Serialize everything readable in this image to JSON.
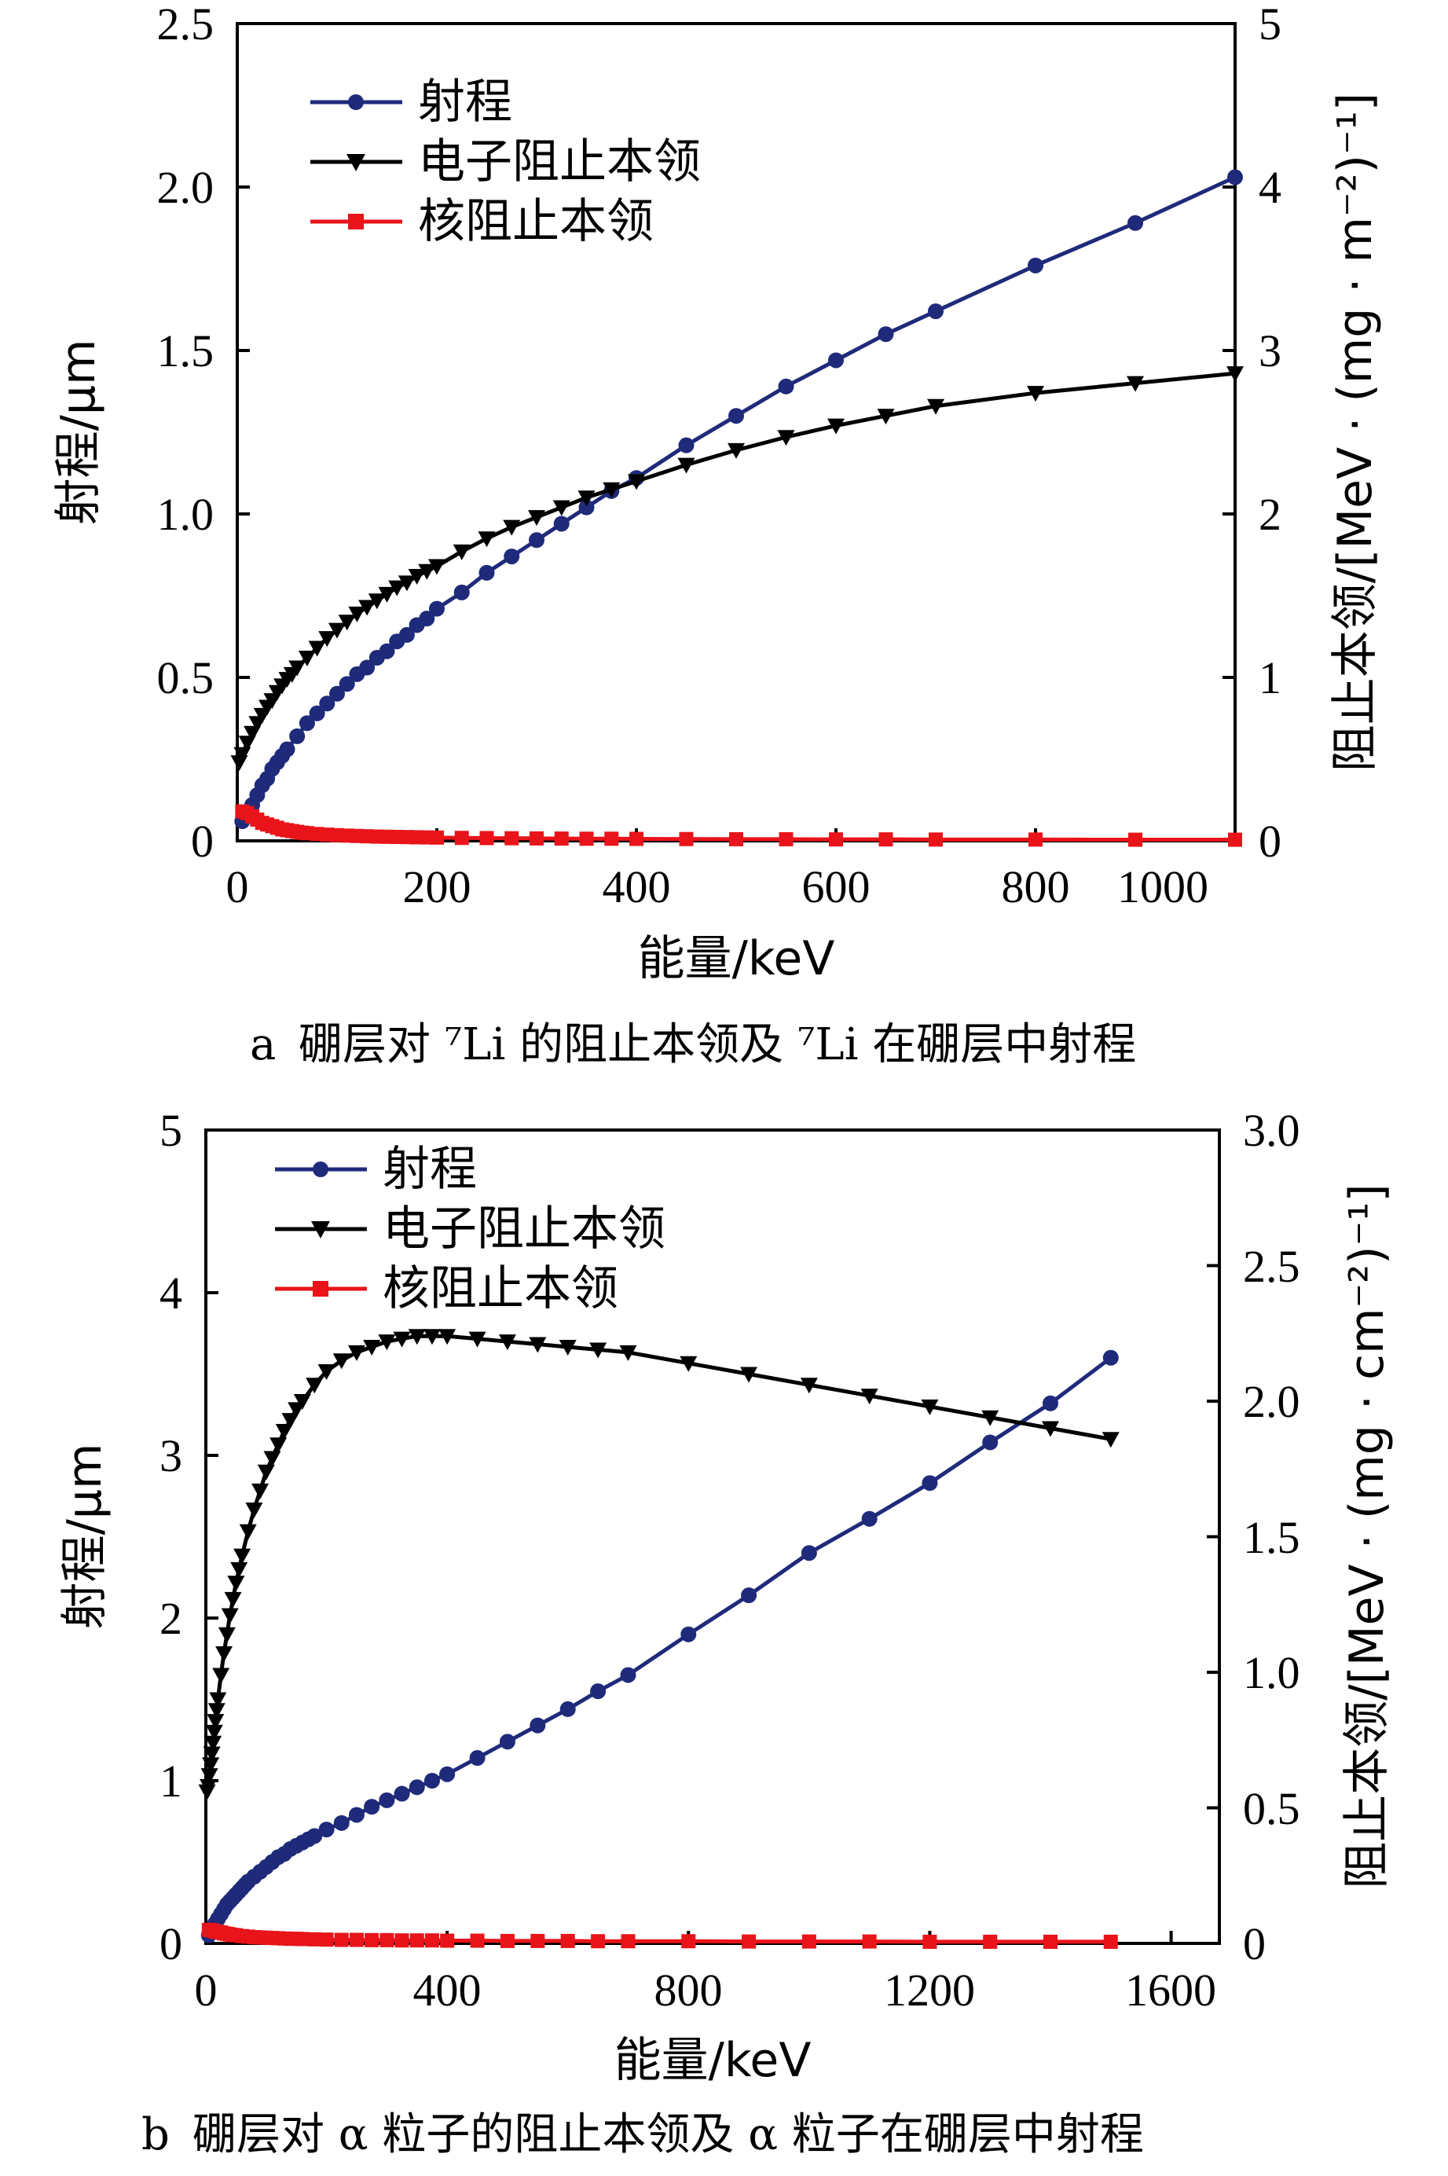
{
  "chart_data": [
    {
      "type": "line",
      "caption_prefix": "a",
      "caption": "硼层对 ⁷Li 的阻止本领及 ⁷Li 在硼层中射程",
      "xlabel": "能量/keV",
      "ylabel_left": "射程/μm",
      "ylabel_right": "阻止本领/[MeV · (mg · m⁻²)⁻¹]",
      "xlim": [
        0,
        1000
      ],
      "ylim_left": [
        0,
        2.5
      ],
      "ylim_right": [
        0,
        5
      ],
      "x_ticks": [
        "0",
        "200",
        "400",
        "600",
        "800",
        "1000"
      ],
      "y_left_ticks": [
        "0",
        "0.5",
        "1.0",
        "1.5",
        "2.0",
        "2.5"
      ],
      "y_right_ticks": [
        "0",
        "1",
        "2",
        "3",
        "4",
        "5"
      ],
      "legend": [
        "射程",
        "电子阻止本领",
        "核阻止本领"
      ],
      "series": [
        {
          "name": "射程",
          "axis": "left",
          "color": "#1f2a7a",
          "marker": "circle",
          "x": [
            5,
            10,
            15,
            20,
            25,
            30,
            35,
            40,
            45,
            50,
            60,
            70,
            80,
            90,
            100,
            110,
            120,
            130,
            140,
            150,
            160,
            170,
            180,
            190,
            200,
            225,
            250,
            275,
            300,
            325,
            350,
            375,
            400,
            450,
            500,
            550,
            600,
            650,
            700,
            800,
            900,
            1000
          ],
          "y": [
            0.06,
            0.08,
            0.11,
            0.14,
            0.17,
            0.19,
            0.22,
            0.24,
            0.26,
            0.28,
            0.32,
            0.36,
            0.39,
            0.42,
            0.45,
            0.48,
            0.51,
            0.53,
            0.56,
            0.58,
            0.61,
            0.63,
            0.66,
            0.68,
            0.71,
            0.76,
            0.82,
            0.87,
            0.92,
            0.97,
            1.02,
            1.07,
            1.11,
            1.21,
            1.3,
            1.39,
            1.47,
            1.55,
            1.62,
            1.76,
            1.89,
            2.03
          ]
        },
        {
          "name": "电子阻止本领",
          "axis": "right",
          "color": "#000000",
          "marker": "triangle-down",
          "x": [
            2,
            5,
            10,
            15,
            20,
            25,
            30,
            35,
            40,
            45,
            50,
            55,
            60,
            70,
            80,
            90,
            100,
            110,
            120,
            130,
            140,
            150,
            160,
            170,
            180,
            190,
            200,
            225,
            250,
            275,
            300,
            325,
            350,
            375,
            400,
            450,
            500,
            550,
            600,
            650,
            700,
            800,
            900,
            1000
          ],
          "y": [
            0.48,
            0.53,
            0.6,
            0.66,
            0.72,
            0.77,
            0.82,
            0.86,
            0.91,
            0.95,
            0.99,
            1.02,
            1.06,
            1.12,
            1.18,
            1.24,
            1.29,
            1.34,
            1.39,
            1.43,
            1.47,
            1.51,
            1.55,
            1.58,
            1.62,
            1.65,
            1.68,
            1.77,
            1.85,
            1.92,
            1.98,
            2.04,
            2.1,
            2.15,
            2.2,
            2.3,
            2.39,
            2.47,
            2.54,
            2.6,
            2.66,
            2.74,
            2.8,
            2.86
          ]
        },
        {
          "name": "核阻止本领",
          "axis": "right",
          "color": "#e8141a",
          "marker": "square",
          "x": [
            5,
            10,
            15,
            20,
            25,
            30,
            35,
            40,
            45,
            50,
            55,
            60,
            65,
            70,
            80,
            90,
            100,
            110,
            120,
            130,
            140,
            150,
            160,
            170,
            180,
            190,
            200,
            225,
            250,
            275,
            300,
            325,
            350,
            375,
            400,
            450,
            500,
            550,
            600,
            650,
            700,
            800,
            900,
            1000
          ],
          "y": [
            0.18,
            0.17,
            0.15,
            0.13,
            0.11,
            0.1,
            0.09,
            0.08,
            0.07,
            0.065,
            0.06,
            0.055,
            0.05,
            0.047,
            0.042,
            0.038,
            0.035,
            0.032,
            0.03,
            0.028,
            0.026,
            0.025,
            0.024,
            0.023,
            0.022,
            0.021,
            0.02,
            0.018,
            0.017,
            0.016,
            0.015,
            0.014,
            0.013,
            0.013,
            0.012,
            0.011,
            0.01,
            0.01,
            0.009,
            0.009,
            0.008,
            0.008,
            0.007,
            0.007
          ]
        }
      ]
    },
    {
      "type": "line",
      "caption_prefix": "b",
      "caption": "硼层对 α 粒子的阻止本领及 α 粒子在硼层中射程",
      "xlabel": "能量/keV",
      "ylabel_left": "射程/μm",
      "ylabel_right": "阻止本领/[MeV · (mg · cm⁻²)⁻¹]",
      "xlim": [
        0,
        1680
      ],
      "ylim_left": [
        0,
        5
      ],
      "ylim_right": [
        0,
        3.0
      ],
      "x_ticks": [
        "0",
        "400",
        "800",
        "1200",
        "1600"
      ],
      "y_left_ticks": [
        "0",
        "1",
        "2",
        "3",
        "4",
        "5"
      ],
      "y_right_ticks": [
        "0",
        "0.5",
        "1.0",
        "1.5",
        "2.0",
        "2.5",
        "3.0"
      ],
      "legend": [
        "射程",
        "电子阻止本领",
        "核阻止本领"
      ],
      "series": [
        {
          "name": "射程",
          "axis": "left",
          "color": "#1f2a7a",
          "marker": "circle",
          "x": [
            5,
            10,
            15,
            20,
            25,
            30,
            35,
            40,
            45,
            50,
            55,
            60,
            65,
            70,
            80,
            90,
            100,
            110,
            120,
            130,
            140,
            150,
            160,
            170,
            180,
            200,
            225,
            250,
            275,
            300,
            325,
            350,
            375,
            400,
            450,
            500,
            550,
            600,
            650,
            700,
            800,
            900,
            1000,
            1100,
            1200,
            1300,
            1400,
            1500
          ],
          "y": [
            0.05,
            0.09,
            0.12,
            0.15,
            0.18,
            0.21,
            0.24,
            0.26,
            0.28,
            0.3,
            0.32,
            0.34,
            0.36,
            0.38,
            0.41,
            0.44,
            0.47,
            0.5,
            0.53,
            0.55,
            0.58,
            0.6,
            0.62,
            0.64,
            0.66,
            0.7,
            0.74,
            0.79,
            0.84,
            0.88,
            0.92,
            0.96,
            1.0,
            1.04,
            1.14,
            1.24,
            1.34,
            1.44,
            1.55,
            1.65,
            1.9,
            2.14,
            2.4,
            2.61,
            2.83,
            3.08,
            3.32,
            3.6
          ]
        },
        {
          "name": "电子阻止本领",
          "axis": "right",
          "color": "#000000",
          "marker": "triangle-down",
          "x": [
            2,
            4,
            6,
            8,
            10,
            12,
            14,
            16,
            18,
            20,
            25,
            30,
            35,
            40,
            45,
            50,
            55,
            60,
            70,
            80,
            90,
            100,
            110,
            120,
            130,
            140,
            150,
            160,
            180,
            200,
            225,
            250,
            275,
            300,
            325,
            350,
            375,
            400,
            450,
            500,
            550,
            600,
            650,
            700,
            800,
            900,
            1000,
            1100,
            1200,
            1300,
            1400,
            1500
          ],
          "y": [
            0.56,
            0.58,
            0.62,
            0.66,
            0.7,
            0.74,
            0.78,
            0.82,
            0.86,
            0.9,
            0.99,
            1.07,
            1.14,
            1.21,
            1.27,
            1.33,
            1.38,
            1.43,
            1.52,
            1.6,
            1.67,
            1.74,
            1.79,
            1.84,
            1.89,
            1.93,
            1.97,
            2.0,
            2.06,
            2.11,
            2.15,
            2.18,
            2.2,
            2.22,
            2.23,
            2.24,
            2.24,
            2.24,
            2.23,
            2.22,
            2.21,
            2.2,
            2.19,
            2.18,
            2.14,
            2.1,
            2.06,
            2.02,
            1.98,
            1.94,
            1.9,
            1.86
          ]
        },
        {
          "name": "核阻止本领",
          "axis": "right",
          "color": "#e8141a",
          "marker": "square",
          "x": [
            5,
            10,
            15,
            20,
            25,
            30,
            35,
            40,
            45,
            50,
            60,
            70,
            80,
            90,
            100,
            110,
            120,
            130,
            140,
            150,
            160,
            180,
            200,
            225,
            250,
            275,
            300,
            325,
            350,
            375,
            400,
            450,
            500,
            550,
            600,
            650,
            700,
            800,
            900,
            1000,
            1100,
            1200,
            1300,
            1400,
            1500
          ],
          "y": [
            0.05,
            0.048,
            0.045,
            0.042,
            0.04,
            0.037,
            0.035,
            0.033,
            0.031,
            0.03,
            0.027,
            0.025,
            0.023,
            0.022,
            0.021,
            0.02,
            0.019,
            0.018,
            0.017,
            0.017,
            0.016,
            0.015,
            0.014,
            0.013,
            0.013,
            0.012,
            0.012,
            0.011,
            0.011,
            0.011,
            0.01,
            0.01,
            0.009,
            0.009,
            0.009,
            0.008,
            0.008,
            0.008,
            0.007,
            0.007,
            0.007,
            0.006,
            0.006,
            0.006,
            0.006
          ]
        }
      ]
    }
  ]
}
